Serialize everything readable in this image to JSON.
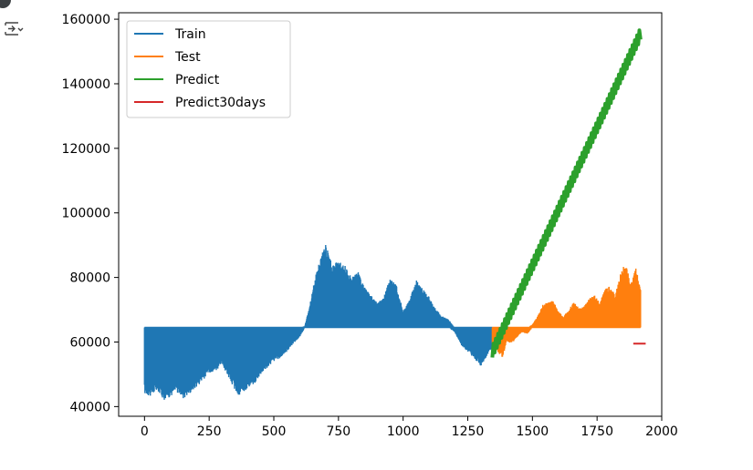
{
  "cell": {
    "run_indicator_icon": "dot-icon",
    "output_icon": "output-toggle-icon"
  },
  "chart_data": {
    "type": "line",
    "title": "",
    "xlabel": "",
    "ylabel": "",
    "xlim": [
      -100,
      2000
    ],
    "ylim": [
      37000,
      162000
    ],
    "x_ticks": [
      0,
      250,
      500,
      750,
      1000,
      1250,
      1500,
      1750,
      2000
    ],
    "y_ticks": [
      40000,
      60000,
      80000,
      100000,
      120000,
      140000,
      160000
    ],
    "grid": false,
    "legend_position": "top-left",
    "series": [
      {
        "name": "Train",
        "color": "#1f77b4",
        "baseline": 64500,
        "x": [
          0,
          25,
          50,
          75,
          100,
          125,
          150,
          175,
          200,
          225,
          250,
          275,
          300,
          325,
          350,
          365,
          380,
          400,
          425,
          450,
          475,
          500,
          525,
          550,
          575,
          600,
          620,
          640,
          660,
          680,
          700,
          725,
          750,
          775,
          800,
          825,
          850,
          875,
          900,
          925,
          950,
          975,
          1000,
          1025,
          1050,
          1075,
          1100,
          1125,
          1150,
          1175,
          1200,
          1225,
          1250,
          1275,
          1300,
          1320,
          1345
        ],
        "low": [
          44000,
          43000,
          45000,
          42000,
          43000,
          44500,
          42500,
          44000,
          46000,
          48000,
          50500,
          51000,
          53000,
          49000,
          45000,
          42500,
          44000,
          46000,
          47000,
          50000,
          52000,
          54000,
          55000,
          57000,
          59500,
          61500,
          64500,
          64500,
          64500,
          64500,
          64500,
          64500,
          64500,
          64500,
          64500,
          64500,
          64500,
          64500,
          64500,
          64500,
          64500,
          64500,
          64500,
          64500,
          64500,
          64500,
          64500,
          64500,
          64500,
          64500,
          63000,
          59000,
          57000,
          55000,
          52500,
          55000,
          58000
        ],
        "high": [
          64500,
          64500,
          64500,
          64500,
          64500,
          64500,
          64500,
          64500,
          64500,
          64500,
          64500,
          64500,
          64500,
          64500,
          64500,
          64500,
          64500,
          64500,
          64500,
          64500,
          64500,
          64500,
          64500,
          64500,
          64500,
          64500,
          65000,
          72000,
          80000,
          86000,
          90500,
          84000,
          85000,
          84000,
          80000,
          82000,
          77000,
          75000,
          72000,
          74000,
          80000,
          77500,
          69500,
          73000,
          79500,
          76500,
          74000,
          70500,
          68000,
          67000,
          64500,
          64500,
          64500,
          64500,
          64500,
          64500,
          64500
        ]
      },
      {
        "name": "Test",
        "color": "#ff7f0e",
        "baseline": 64500,
        "x": [
          1345,
          1365,
          1385,
          1400,
          1420,
          1440,
          1460,
          1480,
          1500,
          1520,
          1540,
          1560,
          1580,
          1600,
          1620,
          1640,
          1660,
          1680,
          1700,
          1720,
          1740,
          1760,
          1780,
          1800,
          1820,
          1840,
          1860,
          1880,
          1900,
          1918
        ],
        "low": [
          59000,
          57000,
          55000,
          60000,
          59500,
          61500,
          63000,
          62500,
          64500,
          64500,
          64500,
          64500,
          64500,
          64500,
          64500,
          64500,
          64500,
          64500,
          64500,
          64500,
          64500,
          64500,
          64500,
          64500,
          64500,
          64500,
          64500,
          64500,
          64500,
          64500
        ],
        "high": [
          64500,
          64500,
          64500,
          64500,
          64500,
          64500,
          64500,
          64500,
          65500,
          68000,
          71500,
          72500,
          73000,
          69500,
          68000,
          70000,
          72500,
          70500,
          71000,
          73500,
          74500,
          72500,
          76500,
          77500,
          74500,
          81000,
          85000,
          78000,
          83000,
          77000
        ]
      },
      {
        "name": "Predict",
        "color": "#2ca02c",
        "x": [
          1345,
          1918
        ],
        "y": [
          57000,
          155500
        ]
      },
      {
        "name": "Predict30days",
        "color": "#d62728",
        "x": [
          1890,
          1938
        ],
        "y": [
          59500,
          59500
        ]
      }
    ]
  }
}
